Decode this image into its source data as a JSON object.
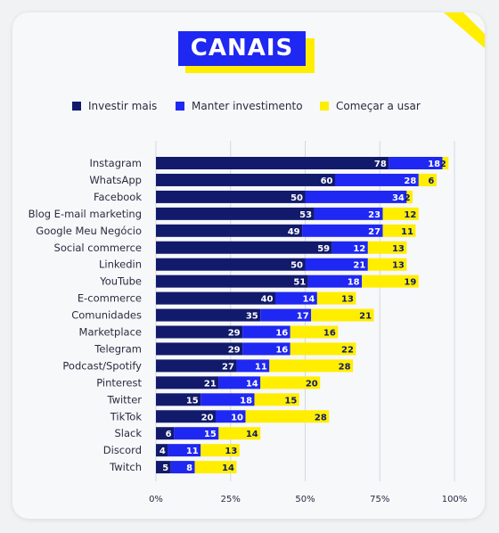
{
  "title": "CANAIS",
  "colors": {
    "investir": "#121a6b",
    "manter": "#1f27f2",
    "comecar": "#ffee00",
    "grid": "#d6d8e0"
  },
  "chart_data": {
    "type": "bar",
    "orientation": "horizontal",
    "stacked": true,
    "legend_position": "top",
    "xlim": [
      0,
      100
    ],
    "x_ticks": [
      "0%",
      "25%",
      "50%",
      "75%",
      "100%"
    ],
    "categories": [
      "Instagram",
      "WhatsApp",
      "Facebook",
      "Blog E-mail marketing",
      "Google Meu Negócio",
      "Social commerce",
      "Linkedin",
      "YouTube",
      "E-commerce",
      "Comunidades",
      "Marketplace",
      "Telegram",
      "Podcast/Spotify",
      "Pinterest",
      "Twitter",
      "TikTok",
      "Slack",
      "Discord",
      "Twitch"
    ],
    "series": [
      {
        "name": "Investir mais",
        "values": [
          78,
          60,
          50,
          53,
          49,
          59,
          50,
          51,
          40,
          35,
          29,
          29,
          27,
          21,
          15,
          20,
          6,
          4,
          5
        ]
      },
      {
        "name": "Manter investimento",
        "values": [
          18,
          28,
          34,
          23,
          27,
          12,
          21,
          18,
          14,
          17,
          16,
          16,
          11,
          14,
          18,
          10,
          15,
          11,
          8
        ]
      },
      {
        "name": "Começar a usar",
        "values": [
          2,
          6,
          2,
          12,
          11,
          13,
          13,
          19,
          13,
          21,
          16,
          22,
          28,
          20,
          15,
          28,
          14,
          13,
          14
        ]
      }
    ]
  }
}
